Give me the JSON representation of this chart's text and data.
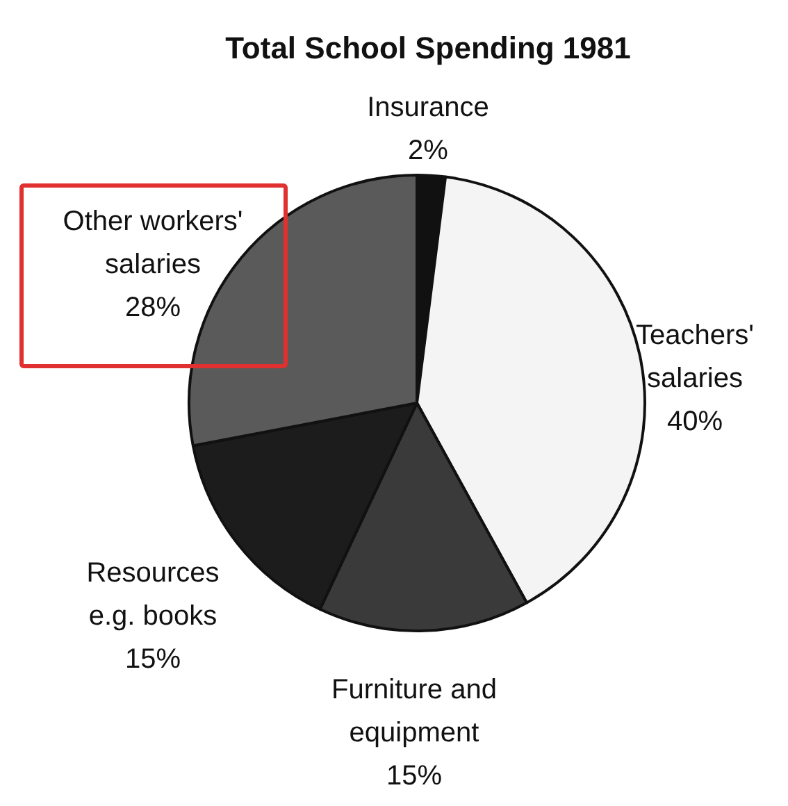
{
  "chart_data": {
    "type": "pie",
    "title": "Total School Spending 1981",
    "categories": [
      "Insurance",
      "Teachers' salaries",
      "Furniture and equipment",
      "Resources e.g. books",
      "Other workers' salaries"
    ],
    "values": [
      2,
      40,
      15,
      15,
      28
    ],
    "colors": [
      "#111111",
      "#f4f4f4",
      "#3a3a3a",
      "#1c1c1c",
      "#5a5a5a"
    ],
    "value_labels": [
      "2%",
      "40%",
      "15%",
      "15%",
      "28%"
    ],
    "legend": false
  }
}
